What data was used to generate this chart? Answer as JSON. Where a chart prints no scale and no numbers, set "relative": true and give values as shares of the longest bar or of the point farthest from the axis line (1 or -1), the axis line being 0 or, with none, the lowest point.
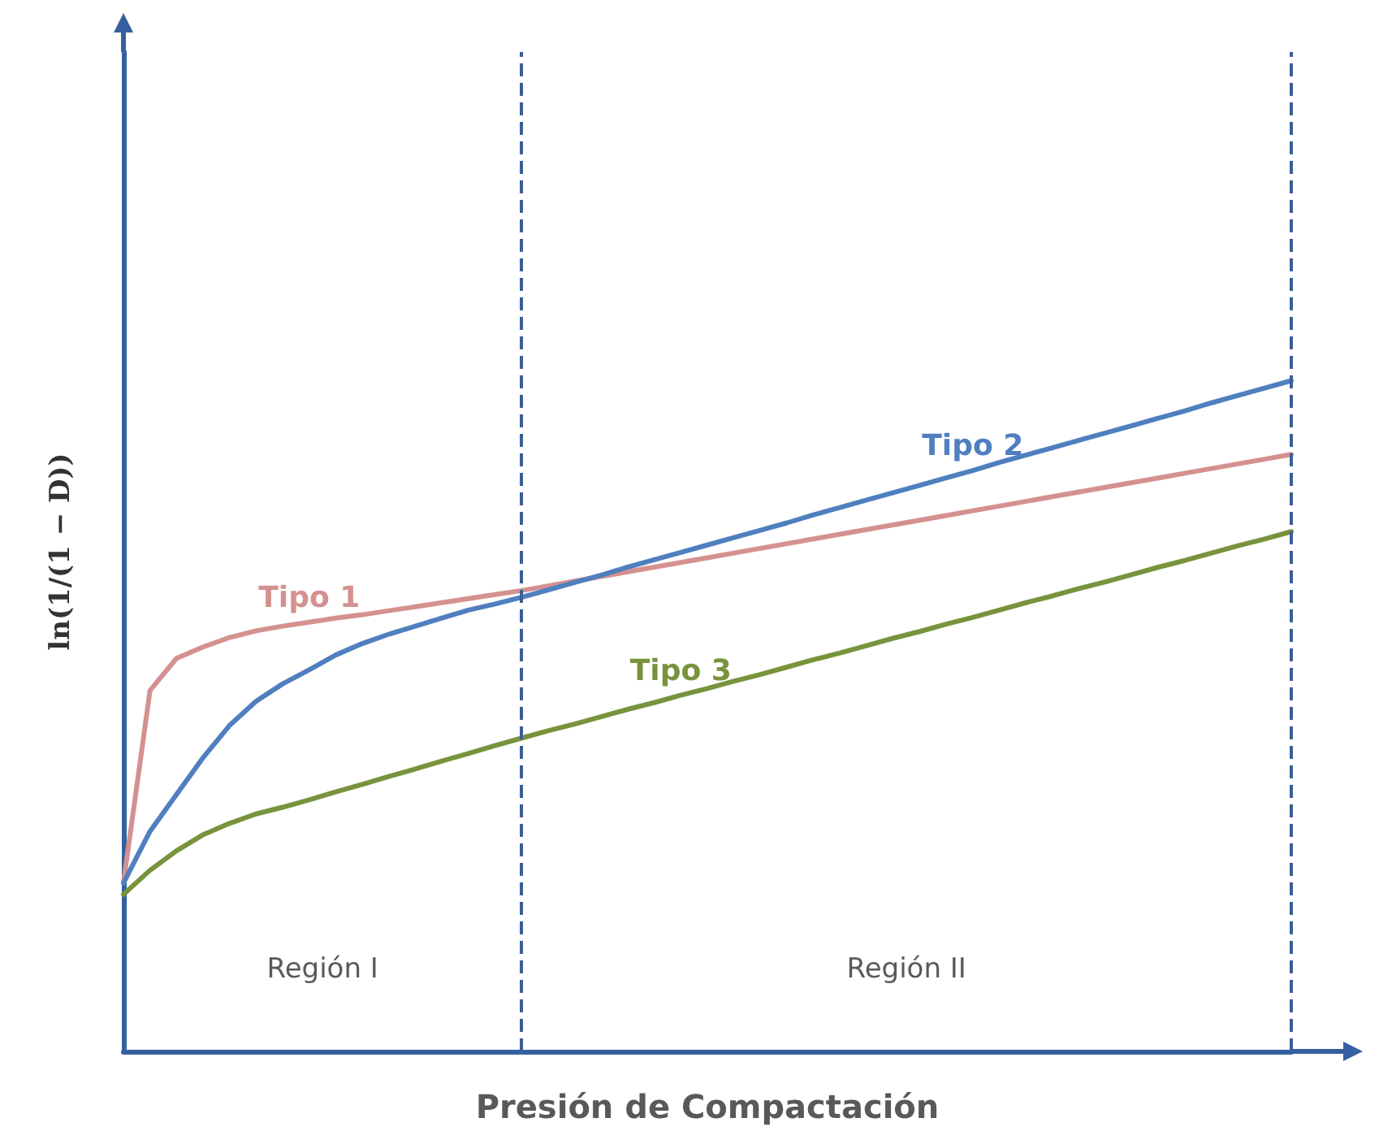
{
  "chart_data": {
    "type": "line",
    "relative": true,
    "xlabel": "Presión de Compactación",
    "ylabel": "ln(1/(1 − D))",
    "categories": [
      null,
      null,
      null,
      null,
      null,
      null,
      null,
      null,
      null,
      null,
      null,
      null,
      null,
      null,
      null,
      null,
      null,
      null,
      null,
      null,
      null,
      null,
      null,
      null,
      null,
      null,
      null,
      null,
      null,
      null,
      null,
      null,
      null,
      null,
      null,
      null,
      null,
      null,
      null,
      null,
      null,
      null,
      null,
      null,
      null
    ],
    "grid": false,
    "legend": false,
    "marker": "none",
    "line_style": "solid",
    "series": [
      {
        "name": "Tipo 1",
        "color": "#d4918f",
        "values": [
          0.251,
          0.538,
          0.586,
          0.603,
          0.617,
          0.627,
          0.634,
          0.64,
          0.646,
          0.651,
          0.657,
          0.663,
          0.669,
          0.675,
          0.681,
          0.687,
          0.694,
          0.701,
          0.708,
          0.715,
          0.722,
          0.729,
          0.736,
          0.743,
          0.75,
          0.757,
          0.764,
          0.771,
          0.778,
          0.785,
          0.792,
          0.799,
          0.806,
          0.813,
          0.82,
          0.827,
          0.834,
          0.841,
          0.848,
          0.855,
          0.862,
          0.869,
          0.876,
          0.883,
          0.89
        ]
      },
      {
        "name": "Tipo 2",
        "color": "#4f7fbf",
        "values": [
          0.251,
          0.328,
          0.383,
          0.438,
          0.486,
          0.522,
          0.548,
          0.569,
          0.591,
          0.608,
          0.622,
          0.634,
          0.646,
          0.658,
          0.667,
          0.677,
          0.688,
          0.699,
          0.71,
          0.722,
          0.733,
          0.744,
          0.755,
          0.766,
          0.777,
          0.788,
          0.8,
          0.811,
          0.822,
          0.833,
          0.844,
          0.855,
          0.866,
          0.878,
          0.889,
          0.9,
          0.911,
          0.922,
          0.933,
          0.944,
          0.955,
          0.967,
          0.978,
          0.989,
          1
        ]
      },
      {
        "name": "Tipo 3",
        "color": "#77933c",
        "values": [
          0.234,
          0.27,
          0.299,
          0.323,
          0.34,
          0.354,
          0.364,
          0.375,
          0.387,
          0.398,
          0.41,
          0.421,
          0.433,
          0.444,
          0.456,
          0.467,
          0.478,
          0.488,
          0.499,
          0.51,
          0.52,
          0.531,
          0.541,
          0.552,
          0.562,
          0.573,
          0.584,
          0.594,
          0.605,
          0.616,
          0.626,
          0.637,
          0.647,
          0.658,
          0.669,
          0.679,
          0.69,
          0.7,
          0.711,
          0.722,
          0.732,
          0.743,
          0.754,
          0.764,
          0.775
        ]
      }
    ],
    "ref_lines": [
      {
        "axis": "x",
        "color": "#3b5e96",
        "line_style": "dashed"
      },
      {
        "axis": "x",
        "color": "#3b5e96",
        "line_style": "dashed"
      }
    ],
    "annotations": [
      "Región I",
      "Región II"
    ]
  }
}
